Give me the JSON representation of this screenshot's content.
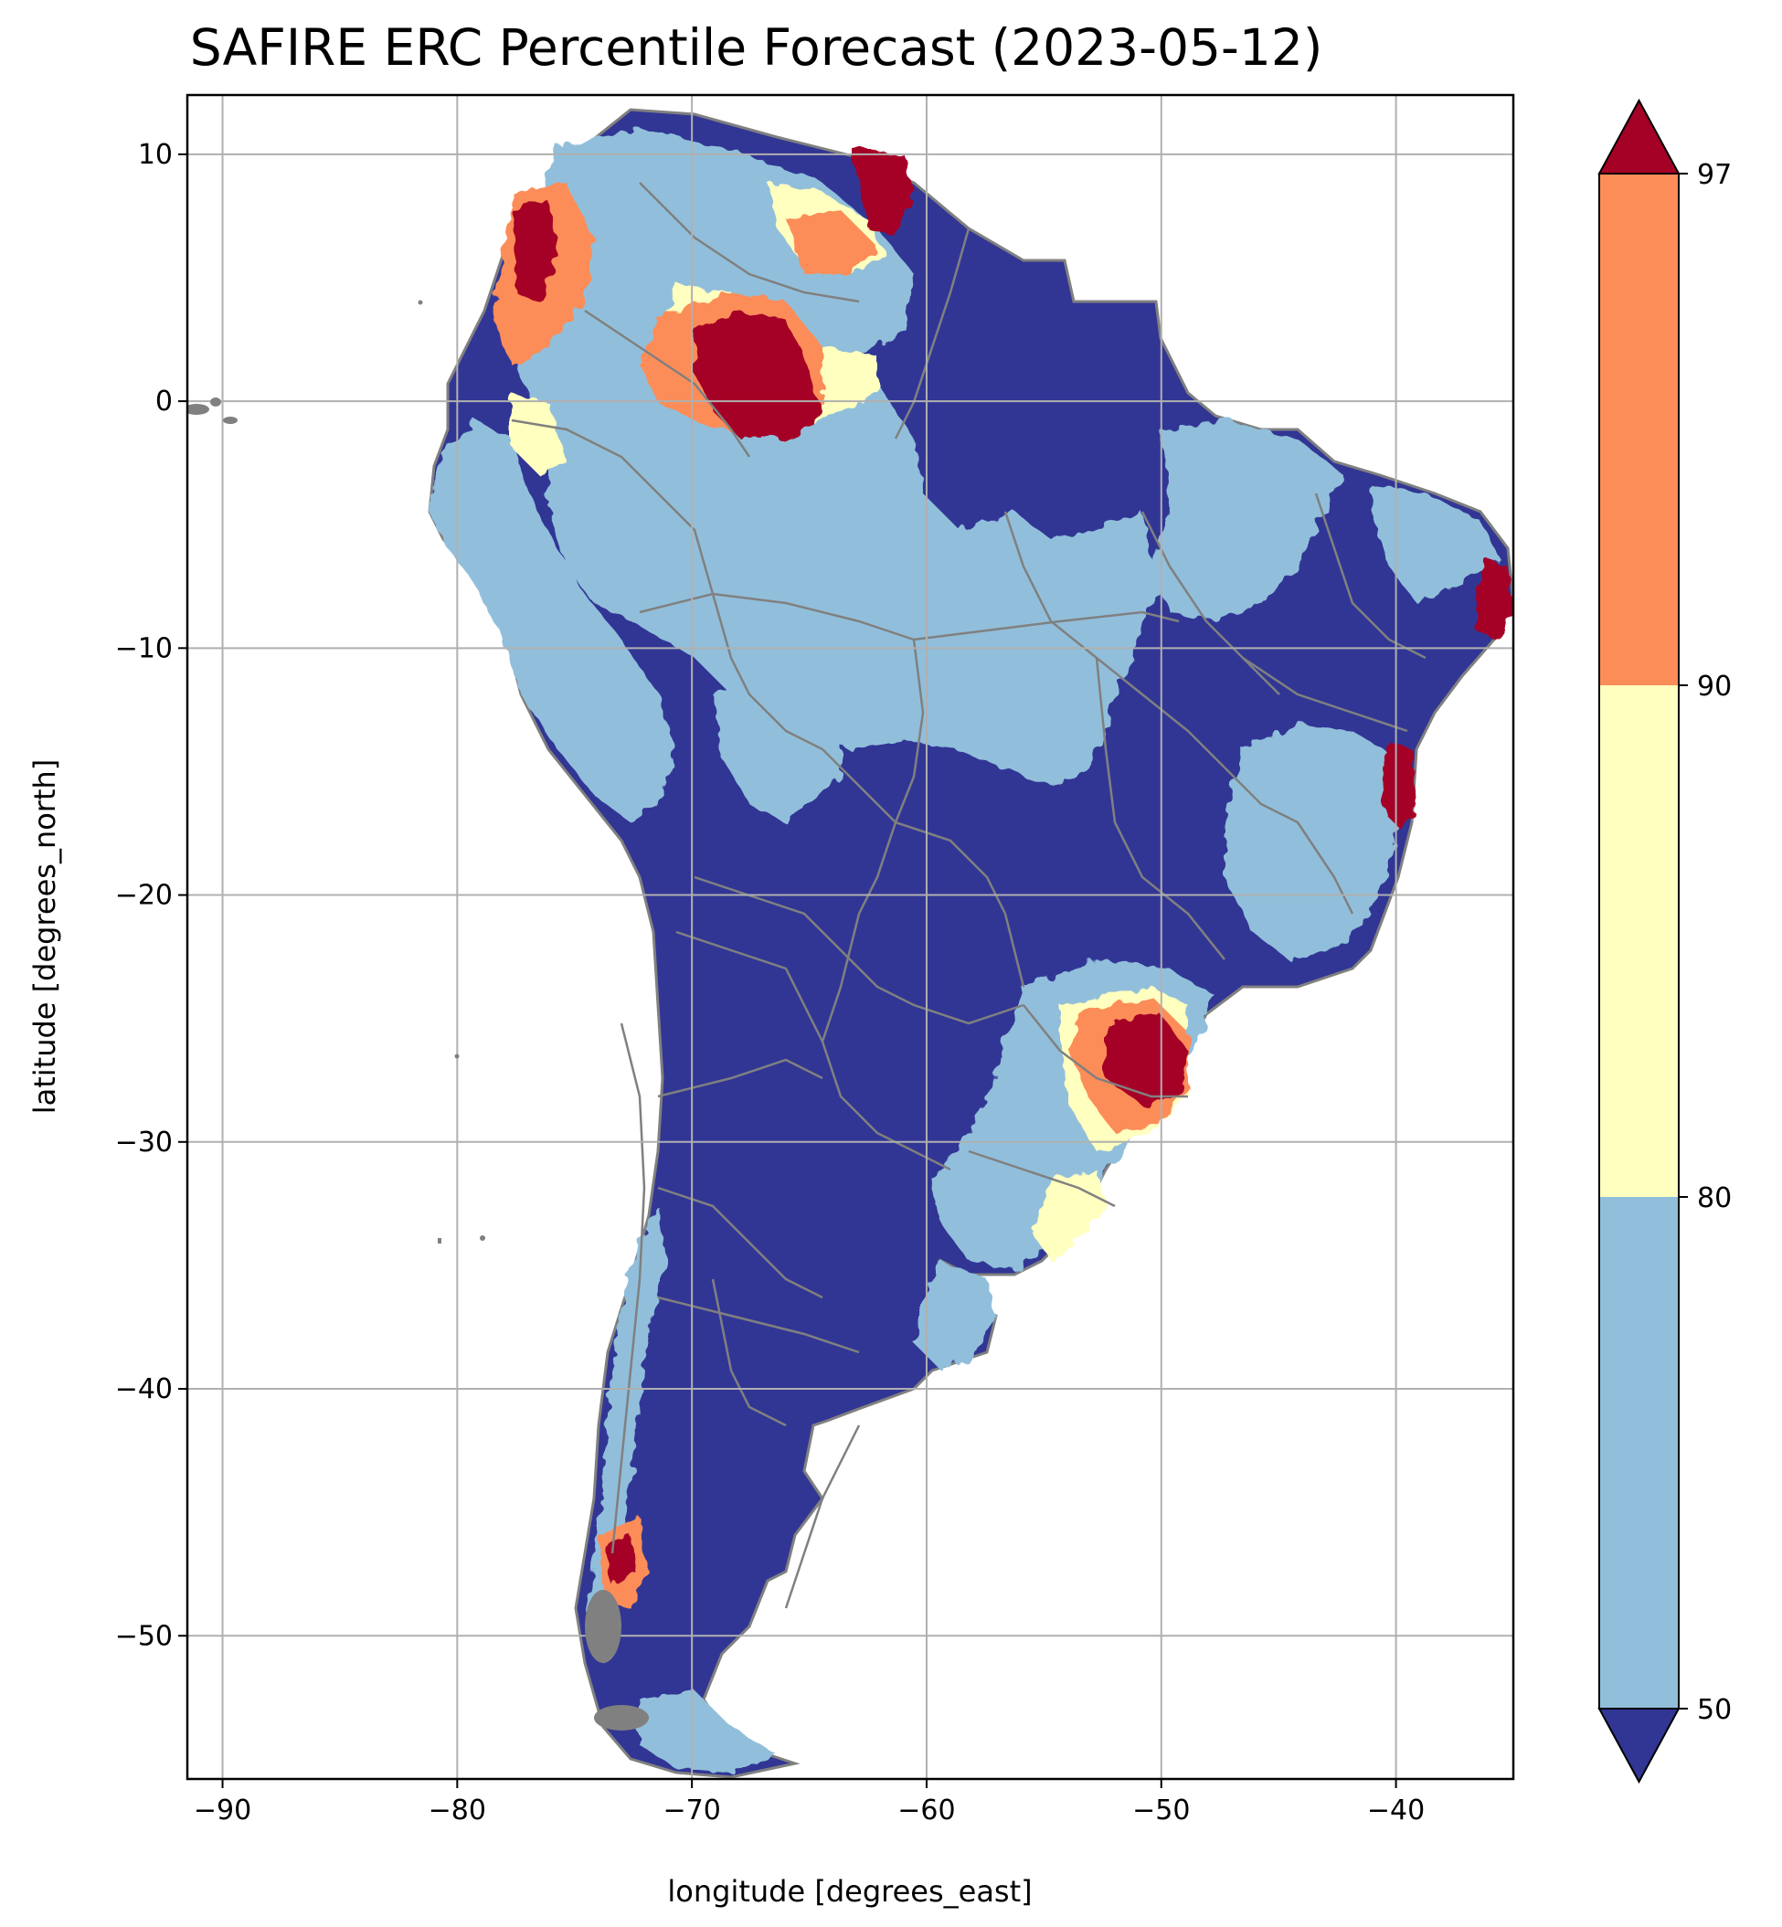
{
  "title": "SAFIRE ERC Percentile Forecast (2023-05-12)",
  "map": {
    "xlabel": "longitude [degrees_east]",
    "ylabel": "latitude [degrees_north]",
    "xlim": [
      -91.5,
      -35
    ],
    "ylim": [
      -55.8,
      12.4
    ],
    "xticks": [
      -90,
      -80,
      -70,
      -60,
      -50,
      -40
    ],
    "yticks": [
      10,
      0,
      -10,
      -20,
      -30,
      -40,
      -50
    ],
    "xtick_labels": [
      "−90",
      "−80",
      "−70",
      "−60",
      "−50",
      "−40"
    ],
    "ytick_labels": [
      "10",
      "0",
      "−10",
      "−20",
      "−30",
      "−40",
      "−50"
    ],
    "grid": true,
    "border_color": "#808080",
    "background_class_color": "#313695",
    "regions": [
      {
        "name": "north_central_hotspot",
        "class": 3,
        "lon": -67.5,
        "lat": 0.5
      },
      {
        "name": "venezuela_coast",
        "class": 3,
        "lon": -63.5,
        "lat": 9.5
      },
      {
        "name": "colombia_west",
        "class": 3,
        "lon": -76.5,
        "lat": 5.5
      },
      {
        "name": "ne_brazil_coast",
        "class": 3,
        "lon": -35.8,
        "lat": -7.5
      },
      {
        "name": "e_brazil_coast",
        "class": 3,
        "lon": -39.5,
        "lat": -15.5
      },
      {
        "name": "s_brazil_hotspot",
        "class": 3,
        "lon": -50.5,
        "lat": -26.5
      },
      {
        "name": "patagonia_west",
        "class": 3,
        "lon": -73.5,
        "lat": -47
      }
    ]
  },
  "colorbar": {
    "boundaries": [
      50,
      80,
      90,
      97
    ],
    "tick_labels": [
      "50",
      "80",
      "90",
      "97"
    ],
    "extend": "both",
    "under_color": "#313695",
    "colors": [
      "#91bfdb",
      "#ffffbf",
      "#fc8d59"
    ],
    "over_color": "#a50026"
  }
}
